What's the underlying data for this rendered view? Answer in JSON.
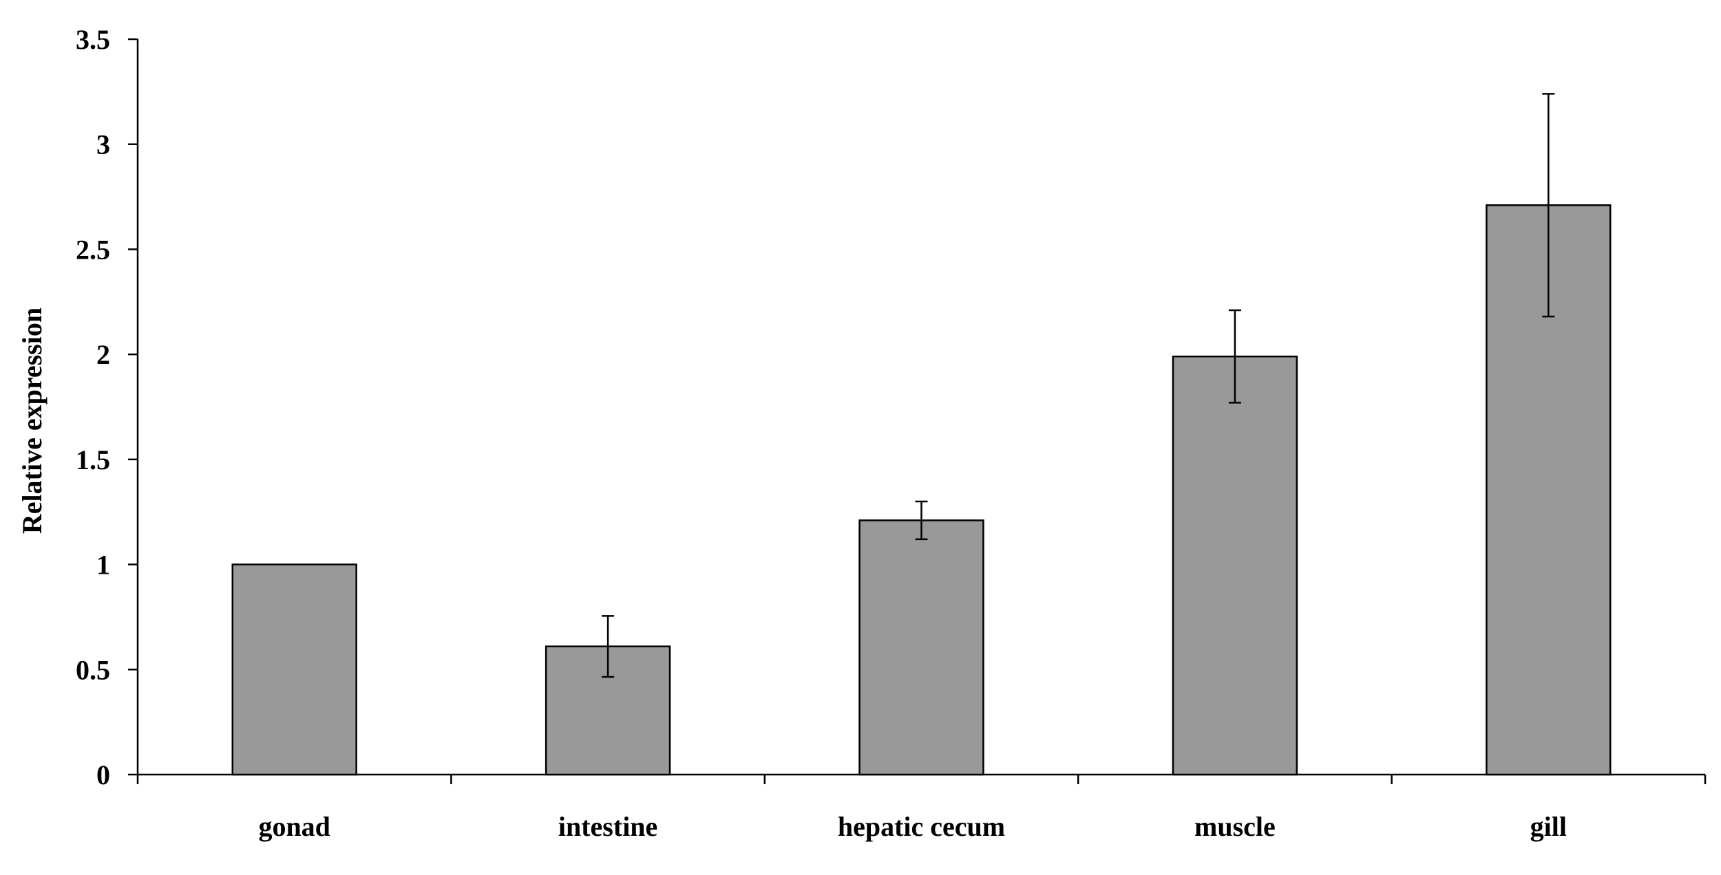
{
  "chart_data": {
    "type": "bar",
    "title": "",
    "xlabel": "",
    "ylabel": "Relative expression",
    "categories": [
      "gonad",
      "intestine",
      "hepatic cecum",
      "muscle",
      "gill"
    ],
    "series": [
      {
        "values": [
          1.0,
          0.61,
          1.21,
          1.99,
          2.71
        ],
        "errors": [
          0,
          0.145,
          0.09,
          0.22,
          0.53
        ]
      }
    ],
    "ylim": [
      0,
      3.5
    ],
    "yticks": [
      0,
      0.5,
      1,
      1.5,
      2,
      2.5,
      3,
      3.5
    ],
    "ytick_labels": [
      "0",
      "0.5",
      "1",
      "1.5",
      "2",
      "2.5",
      "3",
      "3.5"
    ],
    "grid": false,
    "legend": "none",
    "bar_color": "#999999",
    "bar_edge_color": "#000000",
    "axis_color": "#000000"
  }
}
